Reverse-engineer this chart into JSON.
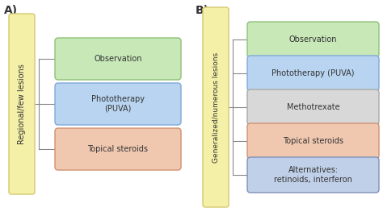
{
  "panel_A": {
    "label": "A)",
    "left_box": {
      "text": "Regional/few lesions",
      "color": "#f5f0a8",
      "edge_color": "#d4c870"
    },
    "right_boxes": [
      {
        "text": "Observation",
        "color": "#c8e8b8",
        "edge_color": "#90c078"
      },
      {
        "text": "Phototherapy\n(PUVA)",
        "color": "#b8d4f0",
        "edge_color": "#80a8d8"
      },
      {
        "text": "Topical steroids",
        "color": "#f0c8b0",
        "edge_color": "#d09070"
      }
    ]
  },
  "panel_B": {
    "label": "B)",
    "left_box": {
      "text": "Generalized/numerous lesions",
      "color": "#f5f0a8",
      "edge_color": "#d4c870"
    },
    "right_boxes": [
      {
        "text": "Observation",
        "color": "#c8e8b8",
        "edge_color": "#90c078"
      },
      {
        "text": "Phototherapy (PUVA)",
        "color": "#b8d4f0",
        "edge_color": "#80a8d8"
      },
      {
        "text": "Methotrexate",
        "color": "#d8d8d8",
        "edge_color": "#a8a8a8"
      },
      {
        "text": "Topical steroids",
        "color": "#f0c8b0",
        "edge_color": "#d09070"
      },
      {
        "text": "Alternatives:\nretinoids, interferon",
        "color": "#c0d0e8",
        "edge_color": "#8090b8"
      }
    ]
  },
  "background_color": "#ffffff",
  "text_color": "#333333",
  "line_color": "#888888",
  "fontsize": 7.0,
  "label_fontsize": 10
}
